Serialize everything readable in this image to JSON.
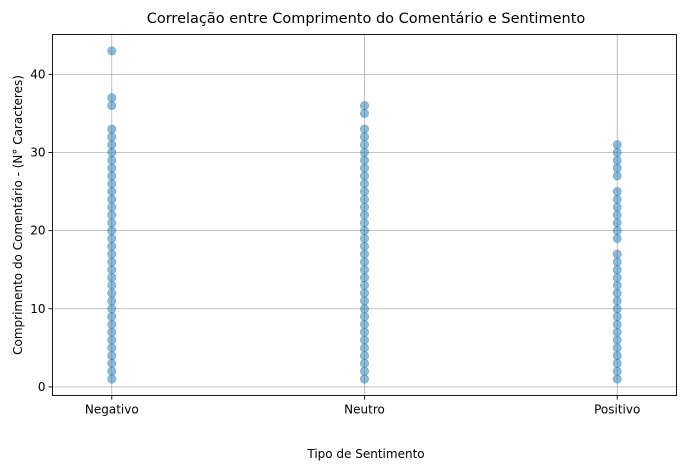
{
  "chart_data": {
    "type": "scatter",
    "title": "Correlação entre Comprimento do Comentário e Sentimento",
    "xlabel": "Tipo de Sentimento",
    "ylabel": "Comprimento do Comentário - (N° Caracteres)",
    "categories": [
      "Negativo",
      "Neutro",
      "Positivo"
    ],
    "ylim": [
      -1.1,
      45.1
    ],
    "yticks": [
      0,
      10,
      20,
      30,
      40
    ],
    "grid": true,
    "point_color": "#1f77b4",
    "point_alpha": 0.5,
    "series": [
      {
        "category": "Negativo",
        "values": [
          1,
          2,
          3,
          4,
          5,
          6,
          7,
          8,
          9,
          10,
          11,
          12,
          13,
          14,
          15,
          16,
          17,
          18,
          19,
          20,
          21,
          22,
          23,
          24,
          25,
          26,
          27,
          28,
          29,
          30,
          31,
          32,
          33,
          36,
          37,
          43
        ]
      },
      {
        "category": "Neutro",
        "values": [
          1,
          2,
          3,
          4,
          5,
          6,
          7,
          8,
          9,
          10,
          11,
          12,
          13,
          14,
          15,
          16,
          17,
          18,
          19,
          20,
          21,
          22,
          23,
          24,
          25,
          26,
          27,
          28,
          29,
          30,
          31,
          32,
          33,
          35,
          36
        ]
      },
      {
        "category": "Positivo",
        "values": [
          1,
          2,
          3,
          4,
          5,
          6,
          7,
          8,
          9,
          10,
          11,
          12,
          13,
          14,
          15,
          16,
          17,
          19,
          20,
          21,
          22,
          23,
          24,
          25,
          27,
          28,
          29,
          30,
          31
        ]
      }
    ]
  }
}
